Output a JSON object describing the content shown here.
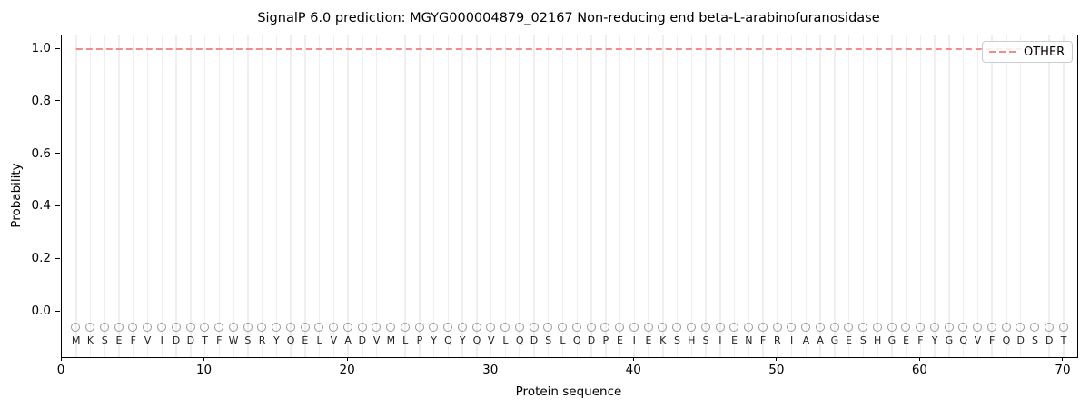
{
  "chart_data": {
    "type": "line",
    "title": "SignalP 6.0 prediction: MGYG000004879_02167 Non-reducing end beta-L-arabinofuranosidase",
    "xlabel": "Protein sequence",
    "ylabel": "Probability",
    "xlim": [
      0,
      71
    ],
    "ylim": [
      -0.17,
      1.05
    ],
    "x_ticks": [
      {
        "label": "0",
        "value": 0
      },
      {
        "label": "10",
        "value": 10
      },
      {
        "label": "20",
        "value": 20
      },
      {
        "label": "30",
        "value": 30
      },
      {
        "label": "40",
        "value": 40
      },
      {
        "label": "50",
        "value": 50
      },
      {
        "label": "60",
        "value": 60
      },
      {
        "label": "70",
        "value": 70
      }
    ],
    "y_ticks": [
      {
        "label": "0.0",
        "value": 0.0
      },
      {
        "label": "0.2",
        "value": 0.2
      },
      {
        "label": "0.4",
        "value": 0.4
      },
      {
        "label": "0.6",
        "value": 0.6
      },
      {
        "label": "0.8",
        "value": 0.8
      },
      {
        "label": "1.0",
        "value": 1.0
      }
    ],
    "grid": "vertical gridline at every residue position",
    "sequence": "MKSEFVIDDTFWSRYQELVADVMLPYQYQVLQDSLQDPEIEKSHSIENFRIAAGESHGEFYGQVFQDSDT",
    "series": [
      {
        "name": "OTHER",
        "color": "#f08c8c",
        "linestyle": "dashed",
        "x_start": 1,
        "values": [
          1,
          1,
          1,
          1,
          1,
          1,
          1,
          1,
          1,
          1,
          1,
          1,
          1,
          1,
          1,
          1,
          1,
          1,
          1,
          1,
          1,
          1,
          1,
          1,
          1,
          1,
          1,
          1,
          1,
          1,
          1,
          1,
          1,
          1,
          1,
          1,
          1,
          1,
          1,
          1,
          1,
          1,
          1,
          1,
          1,
          1,
          1,
          1,
          1,
          1,
          1,
          1,
          1,
          1,
          1,
          1,
          1,
          1,
          1,
          1,
          1,
          1,
          1,
          1,
          1,
          1,
          1,
          1,
          1,
          1
        ]
      }
    ],
    "residue_markers": {
      "shape": "open-circle",
      "color": "#9a9a9a",
      "y_value": -0.06
    },
    "legend": {
      "position": "upper right",
      "entries": [
        {
          "label": "OTHER",
          "linestyle": "dashed",
          "color": "#f08c8c"
        }
      ]
    }
  },
  "colors": {
    "background": "#ffffff",
    "other_line": "#f08c8c",
    "gridline": "#efefef",
    "marker_stroke": "#9a9a9a",
    "residue_letter": "#222222",
    "axis": "#000000",
    "legend_border": "#cccccc"
  }
}
